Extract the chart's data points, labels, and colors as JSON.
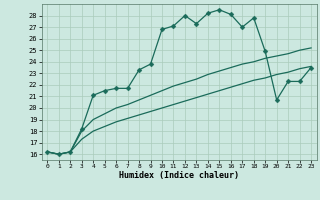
{
  "xlabel": "Humidex (Indice chaleur)",
  "background_color": "#cce8e0",
  "grid_color": "#aaccbb",
  "line_color": "#1a6b5a",
  "xlim": [
    -0.5,
    23.5
  ],
  "ylim": [
    15.5,
    29.0
  ],
  "yticks": [
    16,
    17,
    18,
    19,
    20,
    21,
    22,
    23,
    24,
    25,
    26,
    27,
    28
  ],
  "xticks": [
    0,
    1,
    2,
    3,
    4,
    5,
    6,
    7,
    8,
    9,
    10,
    11,
    12,
    13,
    14,
    15,
    16,
    17,
    18,
    19,
    20,
    21,
    22,
    23
  ],
  "series1_x": [
    0,
    1,
    2,
    3,
    4,
    5,
    6,
    7,
    8,
    9,
    10,
    11,
    12,
    13,
    14,
    15,
    16,
    17,
    18,
    19,
    20,
    21,
    22,
    23
  ],
  "series1_y": [
    16.2,
    16.0,
    16.2,
    18.2,
    21.1,
    21.5,
    21.7,
    21.7,
    23.3,
    23.8,
    26.8,
    27.1,
    28.0,
    27.3,
    28.2,
    28.5,
    28.1,
    27.0,
    27.8,
    24.9,
    20.7,
    22.3,
    22.3,
    23.5
  ],
  "series2_x": [
    0,
    1,
    2,
    3,
    4,
    5,
    6,
    7,
    8,
    9,
    10,
    11,
    12,
    13,
    14,
    15,
    16,
    17,
    18,
    19,
    20,
    21,
    22,
    23
  ],
  "series2_y": [
    16.2,
    16.0,
    16.2,
    18.0,
    19.0,
    19.5,
    20.0,
    20.3,
    20.7,
    21.1,
    21.5,
    21.9,
    22.2,
    22.5,
    22.9,
    23.2,
    23.5,
    23.8,
    24.0,
    24.3,
    24.5,
    24.7,
    25.0,
    25.2
  ],
  "series3_x": [
    0,
    1,
    2,
    3,
    4,
    5,
    6,
    7,
    8,
    9,
    10,
    11,
    12,
    13,
    14,
    15,
    16,
    17,
    18,
    19,
    20,
    21,
    22,
    23
  ],
  "series3_y": [
    16.2,
    16.0,
    16.2,
    17.3,
    18.0,
    18.4,
    18.8,
    19.1,
    19.4,
    19.7,
    20.0,
    20.3,
    20.6,
    20.9,
    21.2,
    21.5,
    21.8,
    22.1,
    22.4,
    22.6,
    22.9,
    23.1,
    23.4,
    23.6
  ],
  "markersize": 2.5,
  "linewidth": 0.9
}
